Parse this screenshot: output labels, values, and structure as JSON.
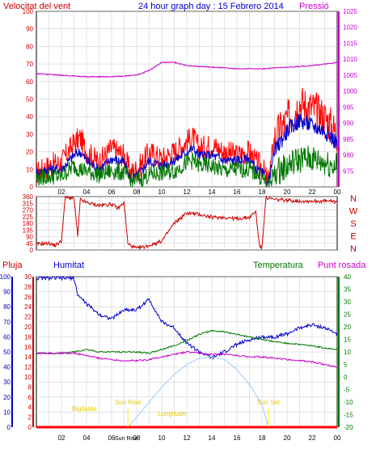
{
  "colors": {
    "red": "#ff0000",
    "blue": "#0000cc",
    "green": "#007700",
    "magenta": "#cc00cc",
    "darkred": "#cc0000",
    "gold": "#ffee00",
    "lightblue": "#99ccff",
    "grid": "#c8c8c8",
    "background": "#ffffff",
    "plot_bg": "#ffffff"
  },
  "chart_data": [
    {
      "id": "wind-pressure",
      "type": "line",
      "title": "24 hour graph day : 15 Febrero 2014",
      "left_label": "Velocitat del vent",
      "right_label": "Pressió",
      "x_ticks": [
        "02",
        "04",
        "06",
        "08",
        "10",
        "12",
        "14",
        "16",
        "18",
        "20",
        "22",
        "00"
      ],
      "ylim_left": [
        0,
        100
      ],
      "left_ticks": [
        0,
        10,
        20,
        30,
        40,
        50,
        60,
        70,
        80,
        90,
        100
      ],
      "ylim_right": [
        970,
        1025
      ],
      "right_ticks": [
        975,
        980,
        985,
        990,
        995,
        1000,
        1005,
        1010,
        1015,
        1020,
        1025
      ],
      "grid": true,
      "series": [
        {
          "key": "gust",
          "color": "red",
          "axis": "left",
          "points": [
            [
              0,
              8
            ],
            [
              1,
              12
            ],
            [
              2,
              14
            ],
            [
              3,
              25
            ],
            [
              3.5,
              28
            ],
            [
              4,
              20
            ],
            [
              5,
              14
            ],
            [
              6,
              22
            ],
            [
              7,
              18
            ],
            [
              7.5,
              8
            ],
            [
              8,
              10
            ],
            [
              8.5,
              14
            ],
            [
              9,
              20
            ],
            [
              10,
              16
            ],
            [
              11,
              20
            ],
            [
              12,
              26
            ],
            [
              12.5,
              28
            ],
            [
              13,
              22
            ],
            [
              14,
              24
            ],
            [
              15,
              20
            ],
            [
              16,
              18
            ],
            [
              17,
              20
            ],
            [
              17.5,
              14
            ],
            [
              18,
              12
            ],
            [
              18.5,
              2
            ],
            [
              19,
              28
            ],
            [
              20,
              38
            ],
            [
              21,
              48
            ],
            [
              22,
              45
            ],
            [
              23,
              40
            ],
            [
              24,
              30
            ]
          ]
        },
        {
          "key": "avg",
          "color": "blue",
          "axis": "left",
          "points": [
            [
              0,
              8
            ],
            [
              1,
              10
            ],
            [
              2,
              10
            ],
            [
              3,
              18
            ],
            [
              3.5,
              20
            ],
            [
              4,
              15
            ],
            [
              5,
              10
            ],
            [
              6,
              16
            ],
            [
              7,
              14
            ],
            [
              7.5,
              4
            ],
            [
              8,
              6
            ],
            [
              8.5,
              10
            ],
            [
              9,
              15
            ],
            [
              10,
              12
            ],
            [
              11,
              15
            ],
            [
              12,
              20
            ],
            [
              12.5,
              22
            ],
            [
              13,
              18
            ],
            [
              14,
              18
            ],
            [
              15,
              15
            ],
            [
              16,
              15
            ],
            [
              17,
              16
            ],
            [
              17.5,
              10
            ],
            [
              18,
              8
            ],
            [
              18.5,
              2
            ],
            [
              19,
              20
            ],
            [
              20,
              32
            ],
            [
              21,
              38
            ],
            [
              22,
              35
            ],
            [
              23,
              32
            ],
            [
              24,
              25
            ]
          ]
        },
        {
          "key": "dir_avg",
          "color": "green",
          "axis": "left",
          "points": [
            [
              0,
              5
            ],
            [
              1,
              6
            ],
            [
              2,
              6
            ],
            [
              3,
              12
            ],
            [
              3.5,
              10
            ],
            [
              4,
              9
            ],
            [
              5,
              7
            ],
            [
              6,
              9
            ],
            [
              7,
              8
            ],
            [
              7.5,
              4
            ],
            [
              8,
              4
            ],
            [
              8.5,
              5
            ],
            [
              9,
              7
            ],
            [
              10,
              8
            ],
            [
              11,
              9
            ],
            [
              12,
              14
            ],
            [
              12.5,
              15
            ],
            [
              13,
              12
            ],
            [
              14,
              12
            ],
            [
              15,
              9
            ],
            [
              16,
              10
            ],
            [
              17,
              10
            ],
            [
              17.5,
              8
            ],
            [
              18,
              5
            ],
            [
              18.5,
              1
            ],
            [
              19,
              8
            ],
            [
              20,
              12
            ],
            [
              21,
              16
            ],
            [
              22,
              16
            ],
            [
              23,
              14
            ],
            [
              24,
              12
            ]
          ]
        },
        {
          "key": "pressure",
          "color": "magenta",
          "axis": "right",
          "points": [
            [
              0,
              1005.5
            ],
            [
              2,
              1005
            ],
            [
              4,
              1004.5
            ],
            [
              6,
              1004.5
            ],
            [
              8,
              1005
            ],
            [
              9,
              1006.5
            ],
            [
              10,
              1009
            ],
            [
              11,
              1009
            ],
            [
              12,
              1008
            ],
            [
              14,
              1007.5
            ],
            [
              16,
              1007
            ],
            [
              18,
              1007
            ],
            [
              20,
              1007.5
            ],
            [
              22,
              1008
            ],
            [
              23,
              1008.5
            ],
            [
              24,
              1009
            ]
          ]
        }
      ]
    },
    {
      "id": "wind-direction",
      "type": "line",
      "left_ticks": [
        0,
        45,
        90,
        135,
        180,
        225,
        270,
        315,
        360
      ],
      "ylim": [
        0,
        360
      ],
      "right_labels": [
        "N",
        "W",
        "S",
        "E",
        "N"
      ],
      "grid": true,
      "series": [
        {
          "key": "direction",
          "color": "darkred",
          "points": [
            [
              0,
              40
            ],
            [
              1,
              45
            ],
            [
              1.5,
              30
            ],
            [
              2,
              60
            ],
            [
              2.3,
              355
            ],
            [
              3,
              350
            ],
            [
              3.3,
              90
            ],
            [
              3.5,
              340
            ],
            [
              4,
              320
            ],
            [
              5,
              300
            ],
            [
              6,
              310
            ],
            [
              6.5,
              280
            ],
            [
              7,
              320
            ],
            [
              7.3,
              40
            ],
            [
              8,
              10
            ],
            [
              9,
              30
            ],
            [
              10,
              60
            ],
            [
              11,
              180
            ],
            [
              12,
              250
            ],
            [
              13,
              240
            ],
            [
              14,
              220
            ],
            [
              15,
              220
            ],
            [
              16,
              210
            ],
            [
              17,
              220
            ],
            [
              17.5,
              260
            ],
            [
              17.8,
              30
            ],
            [
              18,
              10
            ],
            [
              18.3,
              350
            ],
            [
              19,
              340
            ],
            [
              20,
              335
            ],
            [
              21,
              330
            ],
            [
              22,
              330
            ],
            [
              23,
              330
            ],
            [
              24,
              325
            ]
          ]
        }
      ]
    },
    {
      "id": "rain-humidity-temperature",
      "type": "line",
      "labels": {
        "rain": "Pluja",
        "humidity": "Humitat",
        "temperature": "Temperatura",
        "dewpoint": "Punt rosada"
      },
      "humidity_ticks": [
        0,
        10,
        20,
        30,
        40,
        50,
        60,
        70,
        80,
        90,
        100
      ],
      "rain_ticks": [
        0,
        2,
        4,
        6,
        8,
        10,
        12,
        14,
        16,
        18,
        20,
        22,
        24,
        26,
        28,
        30
      ],
      "temp_ticks": [
        -20,
        -15,
        -10,
        -5,
        0,
        5,
        10,
        15,
        20,
        25,
        30,
        35,
        40
      ],
      "ylim_humidity": [
        0,
        100
      ],
      "ylim_temp": [
        -20,
        40
      ],
      "grid": true,
      "annotations": [
        {
          "label": "Sun Rise",
          "hour": 7.3
        },
        {
          "label": "Sun Set",
          "hour": 18.5
        },
        {
          "label": "Sun Rise",
          "hour": 7.3,
          "bottom": true
        }
      ],
      "text_labels": {
        "upper": "Bigllatde",
        "lower": "Longitude"
      },
      "series": [
        {
          "key": "humidity",
          "color": "blue",
          "axis": "humidity",
          "points": [
            [
              0,
              99
            ],
            [
              1,
              99
            ],
            [
              2,
              99
            ],
            [
              3,
              99
            ],
            [
              3.3,
              88
            ],
            [
              4,
              82
            ],
            [
              5,
              75
            ],
            [
              6,
              72
            ],
            [
              7,
              78
            ],
            [
              8,
              78
            ],
            [
              9,
              85
            ],
            [
              10,
              70
            ],
            [
              11,
              66
            ],
            [
              12,
              56
            ],
            [
              13,
              50
            ],
            [
              14,
              46
            ],
            [
              15,
              50
            ],
            [
              16,
              55
            ],
            [
              17,
              58
            ],
            [
              18,
              60
            ],
            [
              19,
              60
            ],
            [
              20,
              62
            ],
            [
              21,
              66
            ],
            [
              22,
              68
            ],
            [
              23,
              66
            ],
            [
              24,
              62
            ]
          ]
        },
        {
          "key": "temperature",
          "color": "green",
          "axis": "temp",
          "points": [
            [
              0,
              9.5
            ],
            [
              1,
              9.5
            ],
            [
              2,
              9.5
            ],
            [
              3,
              10
            ],
            [
              4,
              11
            ],
            [
              5,
              10
            ],
            [
              6,
              10
            ],
            [
              7,
              10
            ],
            [
              8,
              10
            ],
            [
              9,
              9.5
            ],
            [
              10,
              11
            ],
            [
              11,
              12.5
            ],
            [
              12,
              14.5
            ],
            [
              13,
              17
            ],
            [
              14,
              18.5
            ],
            [
              15,
              18
            ],
            [
              16,
              17
            ],
            [
              17,
              16
            ],
            [
              18,
              15
            ],
            [
              19,
              14
            ],
            [
              20,
              13.5
            ],
            [
              21,
              13
            ],
            [
              22,
              12.5
            ],
            [
              23,
              11.5
            ],
            [
              24,
              11
            ]
          ]
        },
        {
          "key": "dewpoint",
          "color": "magenta",
          "axis": "temp",
          "points": [
            [
              0,
              9.5
            ],
            [
              1,
              9.5
            ],
            [
              2,
              9.5
            ],
            [
              3,
              9.5
            ],
            [
              4,
              8.5
            ],
            [
              5,
              7.5
            ],
            [
              6,
              7
            ],
            [
              7,
              6.5
            ],
            [
              8,
              6.5
            ],
            [
              9,
              7
            ],
            [
              10,
              8
            ],
            [
              11,
              9
            ],
            [
              12,
              10
            ],
            [
              13,
              9.5
            ],
            [
              14,
              9
            ],
            [
              15,
              9
            ],
            [
              16,
              8.5
            ],
            [
              17,
              8
            ],
            [
              18,
              8
            ],
            [
              19,
              7.5
            ],
            [
              20,
              7
            ],
            [
              21,
              6.5
            ],
            [
              22,
              6
            ],
            [
              23,
              5
            ],
            [
              24,
              4
            ]
          ]
        },
        {
          "key": "solar",
          "color": "lightblue",
          "axis": "temp",
          "points": [
            [
              7.3,
              -20
            ],
            [
              8,
              -16
            ],
            [
              9,
              -10
            ],
            [
              10,
              -4
            ],
            [
              11,
              1
            ],
            [
              12,
              5
            ],
            [
              13,
              7.5
            ],
            [
              14,
              8
            ],
            [
              15,
              7
            ],
            [
              16,
              3
            ],
            [
              17,
              -3
            ],
            [
              18,
              -11
            ],
            [
              18.5,
              -20
            ]
          ]
        },
        {
          "key": "rain",
          "color": "red",
          "axis": "temp",
          "points": [
            [
              0,
              -20
            ],
            [
              24,
              -20
            ]
          ]
        }
      ]
    }
  ]
}
